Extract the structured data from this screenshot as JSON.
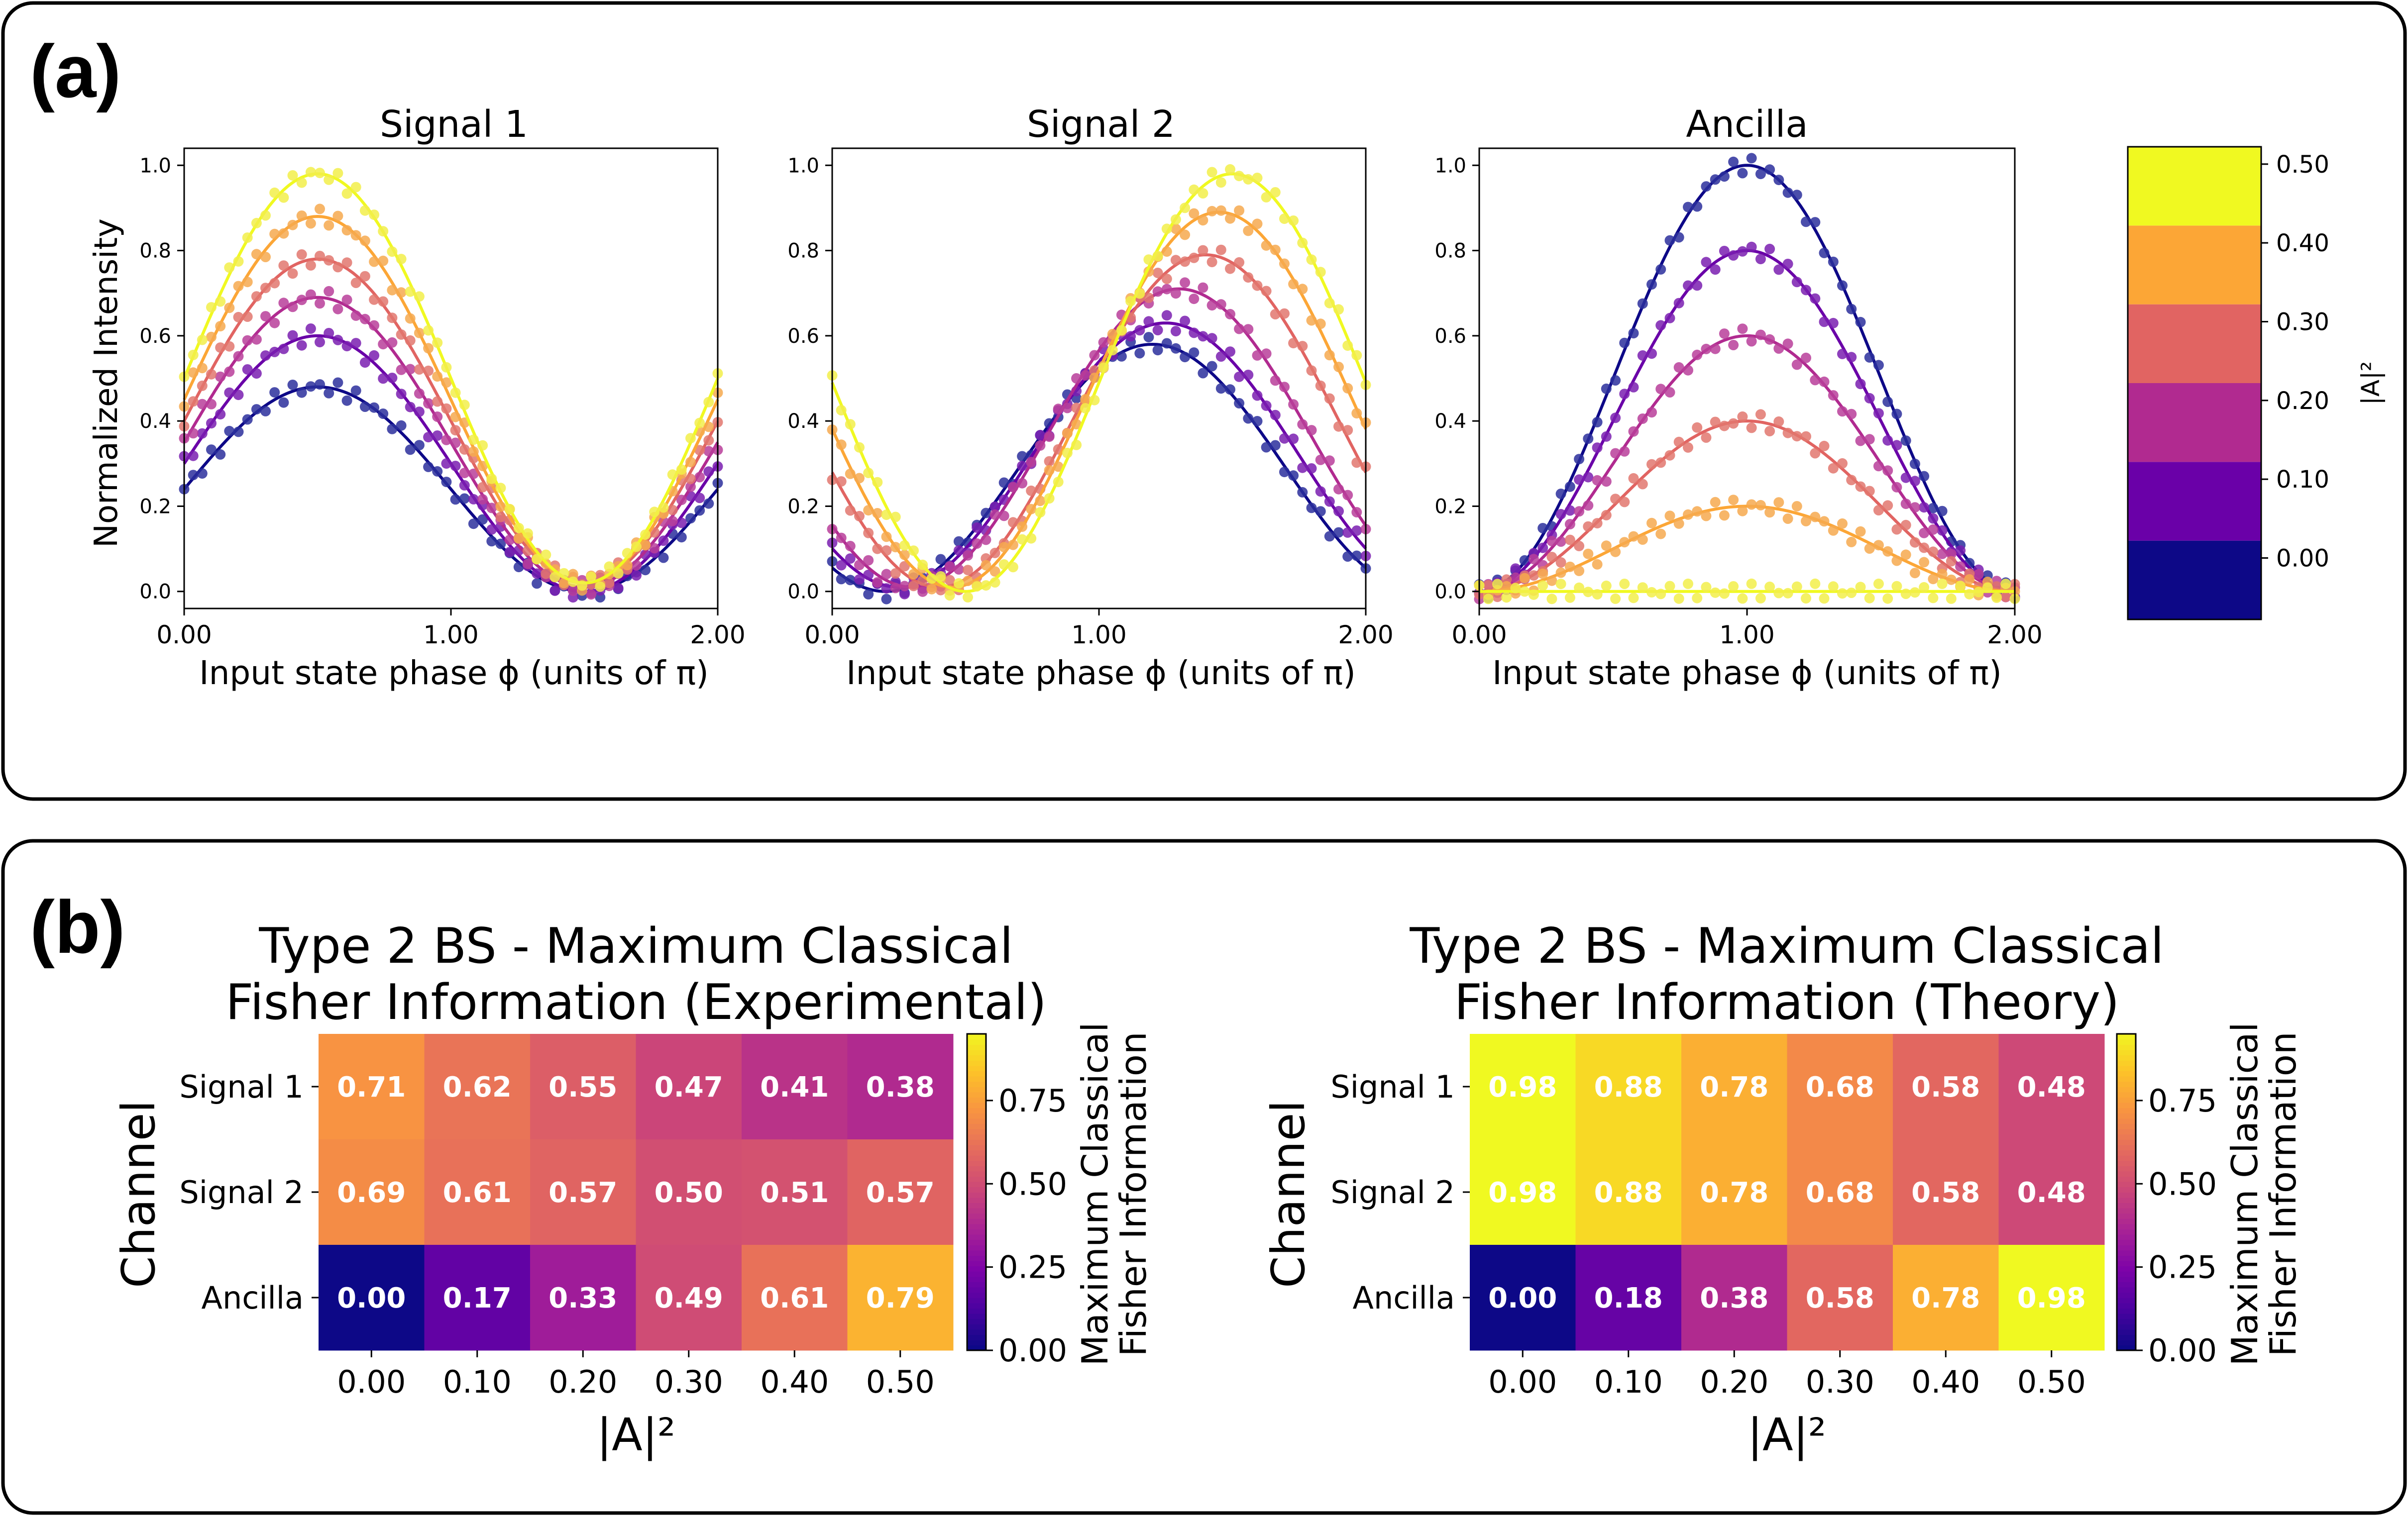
{
  "panels": {
    "a": {
      "letter": "(a)"
    },
    "b": {
      "letter": "(b)"
    }
  },
  "colors": {
    "levels": [
      "#0d0887",
      "#6a00a8",
      "#b12a90",
      "#e16462",
      "#fca636",
      "#f0f921"
    ],
    "panel_border": "#000000"
  },
  "chart_data": [
    {
      "type": "line",
      "id": "signal1",
      "title": "Signal 1",
      "xlabel": "Input state phase ϕ (units of π)",
      "ylabel": "Normalized Intensity",
      "xlim": [
        0,
        2
      ],
      "ylim": [
        -0.04,
        1.04
      ],
      "xticks": [
        "0.00",
        "1.00",
        "2.00"
      ],
      "yticks": [
        "0.0",
        "0.2",
        "0.4",
        "0.6",
        "0.8",
        "1.0"
      ],
      "series": [
        {
          "name": "0.00",
          "offset": 0.24,
          "amplitude": 0.24,
          "phase_shift": 0.5,
          "marker_color": "#2b2f9c"
        },
        {
          "name": "0.10",
          "offset": 0.3,
          "amplitude": 0.3,
          "phase_shift": 0.5,
          "marker_color": "#7a1fb0"
        },
        {
          "name": "0.20",
          "offset": 0.35,
          "amplitude": 0.34,
          "phase_shift": 0.5,
          "marker_color": "#b83e9a"
        },
        {
          "name": "0.30",
          "offset": 0.4,
          "amplitude": 0.38,
          "phase_shift": 0.5,
          "marker_color": "#e2776f"
        },
        {
          "name": "0.40",
          "offset": 0.45,
          "amplitude": 0.43,
          "phase_shift": 0.5,
          "marker_color": "#f6a94f"
        },
        {
          "name": "0.50",
          "offset": 0.5,
          "amplitude": 0.48,
          "phase_shift": 0.5,
          "marker_color": "#f2ee4a"
        }
      ]
    },
    {
      "type": "line",
      "id": "signal2",
      "title": "Signal 2",
      "xlabel": "Input state phase ϕ (units of π)",
      "ylabel": "",
      "xlim": [
        0,
        2
      ],
      "ylim": [
        -0.04,
        1.04
      ],
      "xticks": [
        "0.00",
        "1.00",
        "2.00"
      ],
      "yticks": [
        "0.0",
        "0.2",
        "0.4",
        "0.6",
        "0.8",
        "1.0"
      ],
      "series": [
        {
          "name": "0.00",
          "offset": 0.29,
          "amplitude": 0.29,
          "phase_shift": 1.2,
          "marker_color": "#2b2f9c"
        },
        {
          "name": "0.10",
          "offset": 0.32,
          "amplitude": 0.31,
          "phase_shift": 1.25,
          "marker_color": "#7a1fb0"
        },
        {
          "name": "0.20",
          "offset": 0.36,
          "amplitude": 0.35,
          "phase_shift": 1.3,
          "marker_color": "#b83e9a"
        },
        {
          "name": "0.30",
          "offset": 0.4,
          "amplitude": 0.39,
          "phase_shift": 1.4,
          "marker_color": "#e2776f"
        },
        {
          "name": "0.40",
          "offset": 0.45,
          "amplitude": 0.44,
          "phase_shift": 1.45,
          "marker_color": "#f6a94f"
        },
        {
          "name": "0.50",
          "offset": 0.49,
          "amplitude": 0.49,
          "phase_shift": 1.5,
          "marker_color": "#f2ee4a"
        }
      ]
    },
    {
      "type": "line",
      "id": "ancilla",
      "title": "Ancilla",
      "xlabel": "Input state phase ϕ (units of π)",
      "ylabel": "",
      "xlim": [
        0,
        2
      ],
      "ylim": [
        -0.04,
        1.04
      ],
      "xticks": [
        "0.00",
        "1.00",
        "2.00"
      ],
      "yticks": [
        "0.0",
        "0.2",
        "0.4",
        "0.6",
        "0.8",
        "1.0"
      ],
      "series": [
        {
          "name": "0.00",
          "peak": 1.0,
          "marker_color": "#2b2f9c"
        },
        {
          "name": "0.10",
          "peak": 0.8,
          "marker_color": "#7a1fb0"
        },
        {
          "name": "0.20",
          "peak": 0.6,
          "marker_color": "#b83e9a"
        },
        {
          "name": "0.30",
          "peak": 0.4,
          "marker_color": "#e2776f"
        },
        {
          "name": "0.40",
          "peak": 0.2,
          "marker_color": "#f6a94f"
        },
        {
          "name": "0.50",
          "peak": 0.0,
          "marker_color": "#f2ee4a"
        }
      ]
    },
    {
      "type": "colorbar",
      "id": "a_colorbar",
      "label": "|A|²",
      "ticks": [
        "0.00",
        "0.10",
        "0.20",
        "0.30",
        "0.40",
        "0.50"
      ],
      "levels": 6
    },
    {
      "type": "heatmap",
      "id": "experimental",
      "title_line1": "Type 2 BS - Maximum Classical",
      "title_line2": "Fisher Information (Experimental)",
      "xlabel": "|A|²",
      "ylabel": "Channel",
      "x": [
        "0.00",
        "0.10",
        "0.20",
        "0.30",
        "0.40",
        "0.50"
      ],
      "y": [
        "Signal 1",
        "Signal 2",
        "Ancilla"
      ],
      "values": [
        [
          0.71,
          0.62,
          0.55,
          0.47,
          0.41,
          0.38
        ],
        [
          0.69,
          0.61,
          0.57,
          0.5,
          0.51,
          0.57
        ],
        [
          0.0,
          0.17,
          0.33,
          0.49,
          0.61,
          0.79
        ]
      ],
      "value_labels": [
        [
          "0.71",
          "0.62",
          "0.55",
          "0.47",
          "0.41",
          "0.38"
        ],
        [
          "0.69",
          "0.61",
          "0.57",
          "0.50",
          "0.51",
          "0.57"
        ],
        [
          "0.00",
          "0.17",
          "0.33",
          "0.49",
          "0.61",
          "0.79"
        ]
      ],
      "vmin": 0,
      "vmax": 0.95,
      "colorbar_label_line1": "Maximum Classical",
      "colorbar_label_line2": "Fisher Information",
      "colorbar_ticks": [
        "0.00",
        "0.25",
        "0.50",
        "0.75"
      ]
    },
    {
      "type": "heatmap",
      "id": "theory",
      "title_line1": "Type 2 BS - Maximum Classical",
      "title_line2": "Fisher Information (Theory)",
      "xlabel": "|A|²",
      "ylabel": "Channel",
      "x": [
        "0.00",
        "0.10",
        "0.20",
        "0.30",
        "0.40",
        "0.50"
      ],
      "y": [
        "Signal 1",
        "Signal 2",
        "Ancilla"
      ],
      "values": [
        [
          0.98,
          0.88,
          0.78,
          0.68,
          0.58,
          0.48
        ],
        [
          0.98,
          0.88,
          0.78,
          0.68,
          0.58,
          0.48
        ],
        [
          0.0,
          0.18,
          0.38,
          0.58,
          0.78,
          0.98
        ]
      ],
      "value_labels": [
        [
          "0.98",
          "0.88",
          "0.78",
          "0.68",
          "0.58",
          "0.48"
        ],
        [
          "0.98",
          "0.88",
          "0.78",
          "0.68",
          "0.58",
          "0.48"
        ],
        [
          "0.00",
          "0.18",
          "0.38",
          "0.58",
          "0.78",
          "0.98"
        ]
      ],
      "vmin": 0,
      "vmax": 0.95,
      "colorbar_label_line1": "Maximum Classical",
      "colorbar_label_line2": "Fisher Information",
      "colorbar_ticks": [
        "0.00",
        "0.25",
        "0.50",
        "0.75"
      ]
    }
  ]
}
